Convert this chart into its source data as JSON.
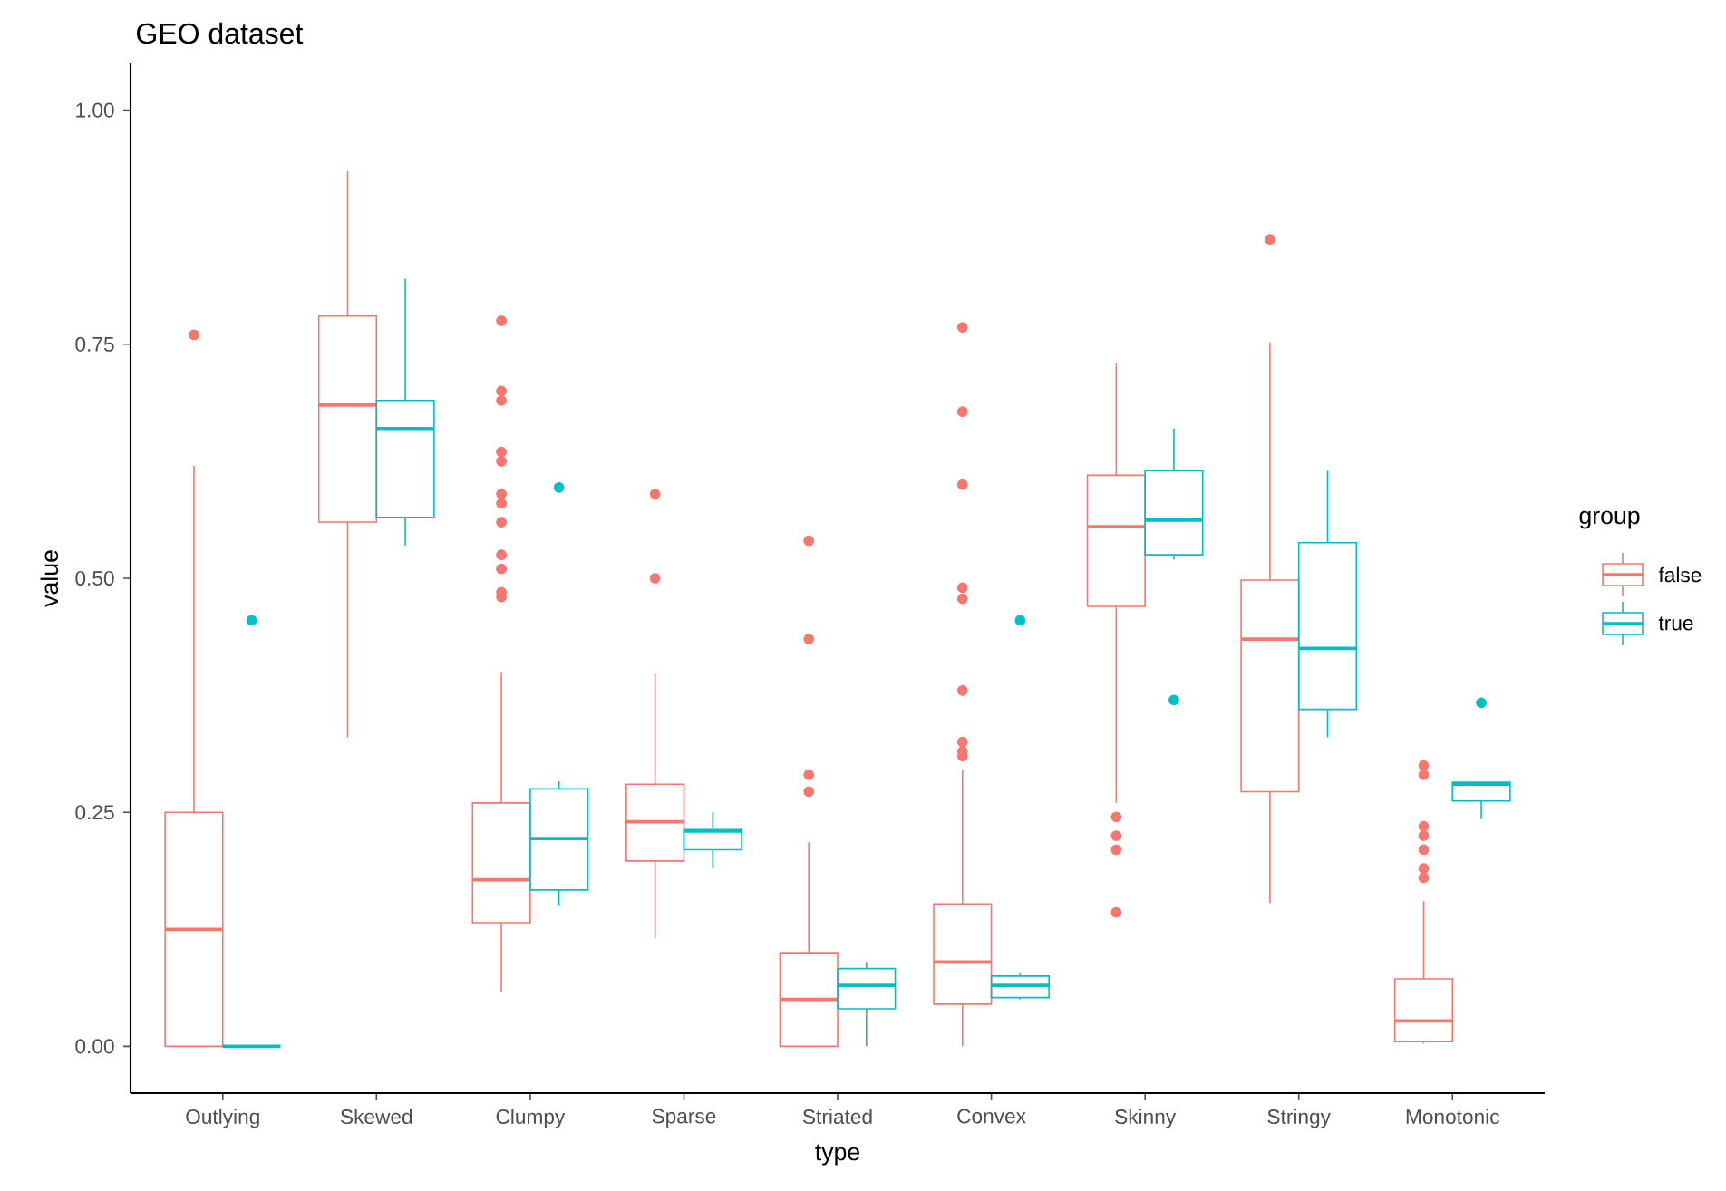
{
  "chart_data": {
    "type": "box",
    "title": "GEO dataset",
    "xlabel": "type",
    "ylabel": "value",
    "legend_title": "group",
    "legend": "right",
    "marker": "circle",
    "categories": [
      "Outlying",
      "Skewed",
      "Clumpy",
      "Sparse",
      "Striated",
      "Convex",
      "Skinny",
      "Stringy",
      "Monotonic"
    ],
    "ylim": [
      -0.05,
      1.05
    ],
    "yticks": [
      {
        "value": 0,
        "label": "0.00"
      },
      {
        "value": 0.25,
        "label": "0.25"
      },
      {
        "value": 0.5,
        "label": "0.50"
      },
      {
        "value": 0.75,
        "label": "0.75"
      },
      {
        "value": 1,
        "label": "1.00"
      }
    ],
    "series": [
      {
        "name": "false",
        "color": "#f8766d",
        "boxes": [
          {
            "low": 0,
            "q1": 0,
            "median": 0.125,
            "q3": 0.25,
            "high": 0.62,
            "outliers": [
              0.76
            ]
          },
          {
            "low": 0.33,
            "q1": 0.56,
            "median": 0.685,
            "q3": 0.78,
            "high": 0.935
          },
          {
            "low": 0.058,
            "q1": 0.132,
            "median": 0.178,
            "q3": 0.26,
            "high": 0.4,
            "outliers": [
              0.775,
              0.7,
              0.69,
              0.635,
              0.625,
              0.59,
              0.58,
              0.56,
              0.525,
              0.51,
              0.485,
              0.48
            ]
          },
          {
            "low": 0.115,
            "q1": 0.198,
            "median": 0.24,
            "q3": 0.28,
            "high": 0.398,
            "outliers": [
              0.59,
              0.5
            ]
          },
          {
            "low": 0,
            "q1": 0,
            "median": 0.05,
            "q3": 0.1,
            "high": 0.218,
            "outliers": [
              0.54,
              0.435,
              0.29,
              0.272
            ]
          },
          {
            "low": 0,
            "q1": 0.045,
            "median": 0.09,
            "q3": 0.152,
            "high": 0.295,
            "outliers": [
              0.768,
              0.678,
              0.6,
              0.49,
              0.478,
              0.38,
              0.325,
              0.315,
              0.31
            ]
          },
          {
            "low": 0.26,
            "q1": 0.47,
            "median": 0.555,
            "q3": 0.61,
            "high": 0.73,
            "outliers": [
              0.245,
              0.225,
              0.21,
              0.143
            ]
          },
          {
            "low": 0.153,
            "q1": 0.272,
            "median": 0.435,
            "q3": 0.498,
            "high": 0.752,
            "outliers": [
              0.862
            ]
          },
          {
            "low": 0.003,
            "q1": 0.005,
            "median": 0.027,
            "q3": 0.072,
            "high": 0.155,
            "outliers": [
              0.3,
              0.29,
              0.235,
              0.225,
              0.21,
              0.19,
              0.18
            ]
          }
        ]
      },
      {
        "name": "true",
        "color": "#00bfc4",
        "boxes": [
          {
            "low": 0,
            "q1": 0,
            "median": 0,
            "q3": 0,
            "high": 0,
            "outliers": [
              0.455
            ]
          },
          {
            "low": 0.535,
            "q1": 0.565,
            "median": 0.66,
            "q3": 0.69,
            "high": 0.82
          },
          {
            "low": 0.15,
            "q1": 0.167,
            "median": 0.222,
            "q3": 0.275,
            "high": 0.283,
            "outliers": [
              0.597
            ]
          },
          {
            "low": 0.19,
            "q1": 0.21,
            "median": 0.23,
            "q3": 0.233,
            "high": 0.25
          },
          {
            "low": 0,
            "q1": 0.04,
            "median": 0.065,
            "q3": 0.083,
            "high": 0.09
          },
          {
            "low": 0.05,
            "q1": 0.052,
            "median": 0.065,
            "q3": 0.075,
            "high": 0.078,
            "outliers": [
              0.455
            ]
          },
          {
            "low": 0.52,
            "q1": 0.525,
            "median": 0.562,
            "q3": 0.615,
            "high": 0.66,
            "outliers": [
              0.37
            ]
          },
          {
            "low": 0.33,
            "q1": 0.36,
            "median": 0.425,
            "q3": 0.538,
            "high": 0.615
          },
          {
            "low": 0.243,
            "q1": 0.262,
            "median": 0.28,
            "q3": 0.282,
            "high": 0.282,
            "outliers": [
              0.367
            ]
          }
        ]
      }
    ]
  }
}
